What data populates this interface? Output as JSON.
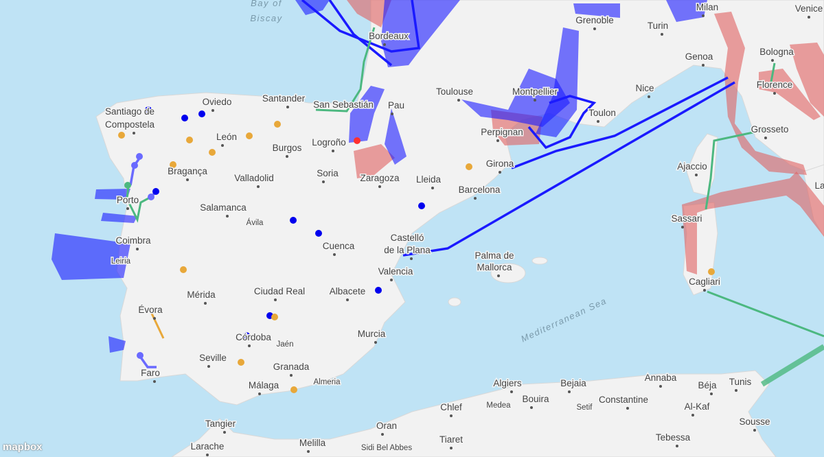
{
  "map": {
    "attribution_logo": "mapbox",
    "colors": {
      "sea": "#bfe3f5",
      "land": "#f2f2f2",
      "blue_overlay": "#1a1aff",
      "red_overlay": "#e06060",
      "green_route": "#4cb880",
      "orange_point": "#e8a83a"
    },
    "seas": [
      "Bay of",
      "Biscay",
      "Mediterranean Sea"
    ],
    "cities": [
      "Bordeaux",
      "Grenoble",
      "Turin",
      "Milan",
      "Venice",
      "Genoa",
      "Bologna",
      "Florence",
      "Nice",
      "Toulon",
      "Montpellier",
      "Toulouse",
      "Pau",
      "San Sebastián",
      "Santander",
      "Oviedo",
      "Santiago de",
      "Compostela",
      "León",
      "Burgos",
      "Logroño",
      "Perpignan",
      "Girona",
      "Ajaccio",
      "Grosseto",
      "Bragança",
      "Valladolid",
      "Soria",
      "Zaragoza",
      "Lleida",
      "Barcelona",
      "Porto",
      "Salamanca",
      "Sassari",
      "Ávila",
      "Coimbra",
      "Cuenca",
      "Castelló",
      "de la Plana",
      "Leiria",
      "Palma de",
      "Mallorca",
      "Valencia",
      "Cagliari",
      "Mérida",
      "Ciudad Real",
      "Albacete",
      "Évora",
      "Córdoba",
      "Jaén",
      "Murcia",
      "Seville",
      "Granada",
      "Faro",
      "Málaga",
      "Almeria",
      "Algiers",
      "Bejaia",
      "Annaba",
      "Béja",
      "Tunis",
      "Chlef",
      "Medea",
      "Bouira",
      "Setif",
      "Constantine",
      "Al-Kaf",
      "Sousse",
      "Tangier",
      "Oran",
      "Tiaret",
      "Tebessa",
      "Melilla",
      "Larache",
      "Sidi Bel Abbes",
      "La"
    ]
  }
}
